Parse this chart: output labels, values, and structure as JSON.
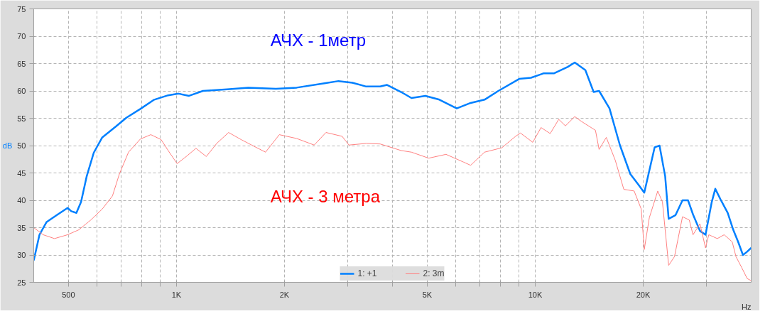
{
  "chart_data": {
    "type": "line",
    "xlabel": "Hz",
    "ylabel": "dB",
    "log": "x",
    "xlim": [
      400,
      40000
    ],
    "ylim": [
      25,
      75
    ],
    "xticks": [
      {
        "value": 500,
        "label": "500"
      },
      {
        "value": 600,
        "label": null
      },
      {
        "value": 700,
        "label": null
      },
      {
        "value": 800,
        "label": null
      },
      {
        "value": 900,
        "label": null
      },
      {
        "value": 1000,
        "label": "1K"
      },
      {
        "value": 2000,
        "label": "2K"
      },
      {
        "value": 3000,
        "label": null
      },
      {
        "value": 4000,
        "label": null
      },
      {
        "value": 5000,
        "label": "5K"
      },
      {
        "value": 6000,
        "label": null
      },
      {
        "value": 7000,
        "label": null
      },
      {
        "value": 8000,
        "label": null
      },
      {
        "value": 9000,
        "label": null
      },
      {
        "value": 10000,
        "label": "10K"
      },
      {
        "value": 20000,
        "label": "20K"
      },
      {
        "value": 30000,
        "label": null
      }
    ],
    "yticks": [
      25,
      30,
      35,
      40,
      45,
      50,
      55,
      60,
      65,
      70,
      75
    ],
    "grid": true,
    "legend": "bottom",
    "line_style": "solid",
    "annotations": [
      "АЧХ - 1метр",
      "АЧХ - 3 метра"
    ],
    "series": [
      {
        "name": "1: +1",
        "color": "#0080ff",
        "x": [
          400,
          415,
          434,
          464,
          497,
          509,
          526,
          542,
          562,
          588,
          621,
          678,
          725,
          793,
          867,
          948,
          1013,
          1084,
          1185,
          1385,
          1585,
          1893,
          2163,
          2587,
          2829,
          3093,
          3381,
          3696,
          3864,
          4227,
          4519,
          4942,
          5405,
          6043,
          6607,
          7225,
          7894,
          9023,
          9730,
          10540,
          11270,
          12330,
          12890,
          13800,
          14550,
          15070,
          16110,
          17220,
          18410,
          19430,
          20140,
          21530,
          22210,
          23030,
          23550,
          24620,
          25740,
          26670,
          27540,
          28790,
          29840,
          31060,
          31770,
          32890,
          34400,
          35650,
          36790,
          37940,
          38980,
          40000
        ],
        "values": [
          29,
          33.7,
          36,
          37.3,
          38.6,
          38,
          37.7,
          39.7,
          44.4,
          48.7,
          51.5,
          53.5,
          55.1,
          56.7,
          58.4,
          59.2,
          59.5,
          59.1,
          60.0,
          60.3,
          60.6,
          60.4,
          60.6,
          61.4,
          61.8,
          61.5,
          60.8,
          60.8,
          61.1,
          59.8,
          58.7,
          59.1,
          58.4,
          56.8,
          57.8,
          58.4,
          60.0,
          62.2,
          62.4,
          63.2,
          63.2,
          64.4,
          65.2,
          63.8,
          59.8,
          60.0,
          56.8,
          50.1,
          44.8,
          42.8,
          41.4,
          49.7,
          50.0,
          44.4,
          36.6,
          37.3,
          40.0,
          40.0,
          37.4,
          34.4,
          33.7,
          39.7,
          42.1,
          40.1,
          37.7,
          34.6,
          32.4,
          30.0,
          30.6,
          31.3
        ]
      },
      {
        "name": "2: 3m",
        "color": "#ff8080",
        "x": [
          400,
          425,
          457,
          497,
          534,
          577,
          621,
          663,
          693,
          735,
          793,
          848,
          906,
          948,
          1004,
          1069,
          1133,
          1211,
          1295,
          1397,
          1514,
          1620,
          1771,
          1935,
          2163,
          2420,
          2610,
          2895,
          3025,
          3381,
          3696,
          4227,
          4519,
          5047,
          5641,
          6304,
          6607,
          7225,
          8070,
          8818,
          9095,
          9845,
          10380,
          11010,
          11630,
          12140,
          12890,
          13470,
          14720,
          15070,
          15780,
          16720,
          17660,
          18870,
          19750,
          20140,
          20800,
          21960,
          22630,
          23550,
          24450,
          25740,
          26880,
          27540,
          28790,
          29840,
          30470,
          32180,
          33640,
          35420,
          36280,
          37640,
          38980,
          40000
        ],
        "values": [
          35.0,
          33.7,
          33.0,
          33.7,
          34.6,
          36.4,
          38.4,
          40.8,
          44.8,
          48.8,
          51.2,
          52.0,
          51.1,
          49.1,
          46.7,
          48.1,
          49.5,
          48.0,
          50.4,
          52.4,
          51.1,
          50.1,
          48.8,
          52.0,
          51.3,
          50.1,
          52.4,
          51.7,
          50.1,
          50.4,
          50.3,
          49.1,
          48.8,
          47.7,
          48.4,
          47.0,
          46.4,
          48.8,
          49.6,
          51.7,
          52.3,
          50.6,
          53.3,
          52.2,
          54.8,
          53.6,
          55.3,
          54.4,
          52.8,
          49.3,
          51.5,
          47.3,
          42.0,
          41.7,
          38.4,
          31.0,
          36.8,
          41.7,
          39.7,
          28.1,
          29.7,
          37.0,
          36.4,
          33.7,
          35.7,
          31.3,
          33.7,
          33.0,
          33.7,
          32.4,
          29.7,
          27.7,
          25.7,
          25.3
        ]
      }
    ]
  }
}
